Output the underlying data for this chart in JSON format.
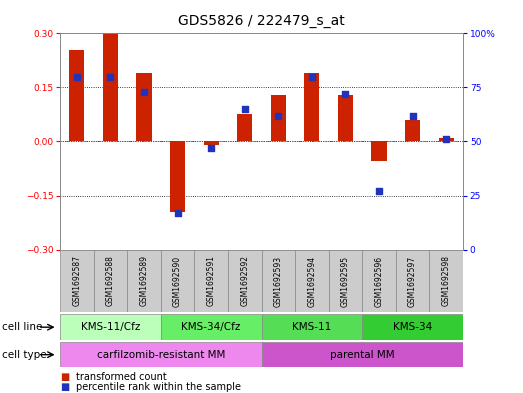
{
  "title": "GDS5826 / 222479_s_at",
  "samples": [
    "GSM1692587",
    "GSM1692588",
    "GSM1692589",
    "GSM1692590",
    "GSM1692591",
    "GSM1692592",
    "GSM1692593",
    "GSM1692594",
    "GSM1692595",
    "GSM1692596",
    "GSM1692597",
    "GSM1692598"
  ],
  "transformed_count": [
    0.255,
    0.3,
    0.19,
    -0.195,
    -0.01,
    0.075,
    0.13,
    0.19,
    0.13,
    -0.055,
    0.06,
    0.01
  ],
  "percentile_rank": [
    80,
    80,
    73,
    17,
    47,
    65,
    62,
    80,
    72,
    27,
    62,
    51
  ],
  "ylim_left": [
    -0.3,
    0.3
  ],
  "ylim_right": [
    0,
    100
  ],
  "yticks_left": [
    -0.3,
    -0.15,
    0,
    0.15,
    0.3
  ],
  "yticks_right": [
    0,
    25,
    50,
    75,
    100
  ],
  "bar_color": "#cc2200",
  "dot_color": "#2233bb",
  "cell_line_groups": [
    {
      "label": "KMS-11/Cfz",
      "start": 0,
      "end": 3,
      "color": "#bbffbb"
    },
    {
      "label": "KMS-34/Cfz",
      "start": 3,
      "end": 6,
      "color": "#66ee66"
    },
    {
      "label": "KMS-11",
      "start": 6,
      "end": 9,
      "color": "#55dd55"
    },
    {
      "label": "KMS-34",
      "start": 9,
      "end": 12,
      "color": "#33cc33"
    }
  ],
  "cell_type_groups": [
    {
      "label": "carfilzomib-resistant MM",
      "start": 0,
      "end": 6,
      "color": "#ee88ee"
    },
    {
      "label": "parental MM",
      "start": 6,
      "end": 12,
      "color": "#cc55cc"
    }
  ],
  "bar_width": 0.45,
  "dot_size": 22,
  "title_fontsize": 10,
  "tick_fontsize": 6.5,
  "sample_fontsize": 5.5,
  "label_fontsize": 7.5,
  "legend_fontsize": 7
}
